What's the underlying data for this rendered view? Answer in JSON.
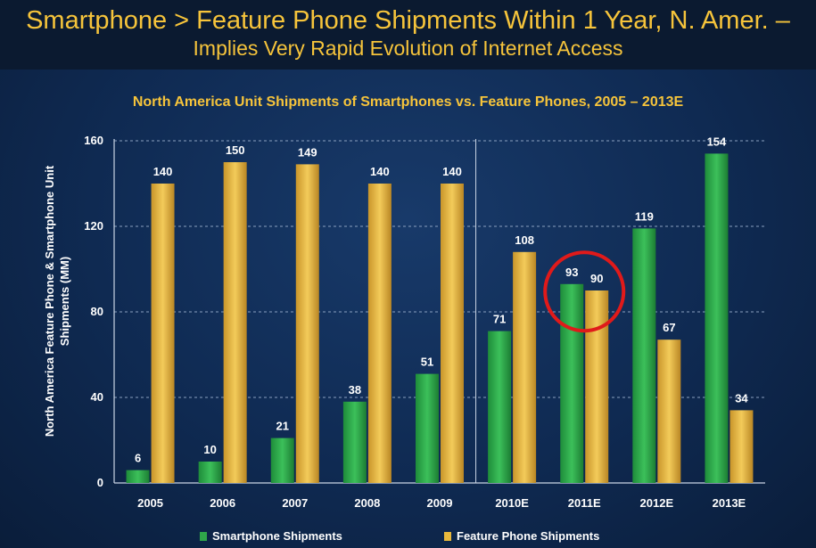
{
  "header": {
    "title": "Smartphone > Feature Phone Shipments Within 1 Year, N. Amer. –",
    "subtitle": "Implies Very Rapid Evolution of Internet Access"
  },
  "colors": {
    "title": "#f6c43b",
    "smartphone": "#2fa64a",
    "feature": "#e8b83c",
    "highlight_circle": "#e01a1a"
  },
  "chart_data": {
    "type": "bar",
    "title": "North America Unit Shipments of Smartphones vs. Feature Phones, 2005 – 2013E",
    "ylabel": "North America Feature Phone & Smartphone Unit Shipments (MM)",
    "xlabel": "",
    "ylim": [
      0,
      160
    ],
    "yticks": [
      0,
      40,
      80,
      120,
      160
    ],
    "grid": true,
    "legend_position": "bottom",
    "categories": [
      "2005",
      "2006",
      "2007",
      "2008",
      "2009",
      "2010E",
      "2011E",
      "2012E",
      "2013E"
    ],
    "series": [
      {
        "name": "Smartphone Shipments",
        "values": [
          6,
          10,
          21,
          38,
          51,
          71,
          93,
          119,
          154
        ]
      },
      {
        "name": "Feature Phone Shipments",
        "values": [
          140,
          150,
          149,
          140,
          140,
          108,
          90,
          67,
          34
        ]
      }
    ],
    "highlight_category": "2011E"
  }
}
